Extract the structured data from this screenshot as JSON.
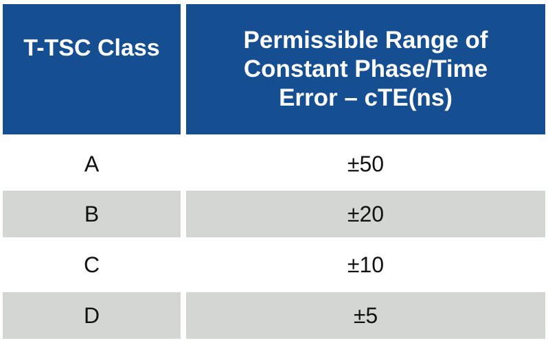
{
  "table": {
    "headers": [
      "T-TSC Class",
      "Permissible Range of Constant Phase/Time Error – cTE(ns)"
    ],
    "rows": [
      {
        "class": "A",
        "range": "±50"
      },
      {
        "class": "B",
        "range": "±20"
      },
      {
        "class": "C",
        "range": "±10"
      },
      {
        "class": "D",
        "range": "±5"
      }
    ]
  },
  "colors": {
    "header_bg": "#164f91",
    "header_text": "#ffffff",
    "row_shaded_bg": "#d3d6d1",
    "row_white_bg": "#ffffff"
  }
}
